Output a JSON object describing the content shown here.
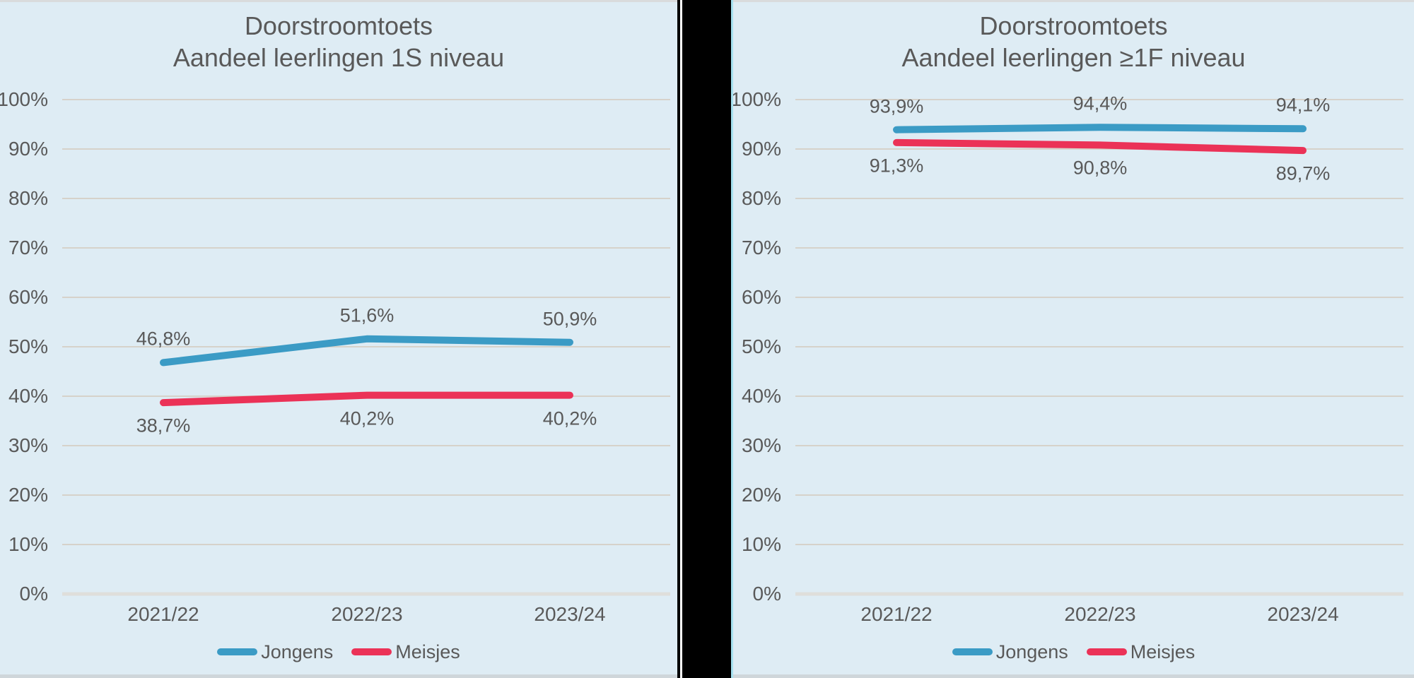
{
  "colors": {
    "background": "#deecf4",
    "divider": "#000000",
    "grid": "#d6d2ca",
    "axis_line": "#dfdedb",
    "text": "#595959",
    "jongens": "#3b9bc5",
    "meisjes": "#eb3257",
    "panel_edge_cyan": "#a7e1ef",
    "panel_edge_white": "#ffffff"
  },
  "chart_data": [
    {
      "type": "line",
      "title": "Doorstroomtoets",
      "subtitle": "Aandeel leerlingen 1S niveau",
      "categories": [
        "2021/22",
        "2022/23",
        "2023/24"
      ],
      "series": [
        {
          "name": "Jongens",
          "color_key": "jongens",
          "values": [
            46.8,
            51.6,
            50.9
          ],
          "labels": [
            "46,8%",
            "51,6%",
            "50,9%"
          ],
          "label_position": "above"
        },
        {
          "name": "Meisjes",
          "color_key": "meisjes",
          "values": [
            38.7,
            40.2,
            40.2
          ],
          "labels": [
            "38,7%",
            "40,2%",
            "40,2%"
          ],
          "label_position": "below"
        }
      ],
      "y_axis": {
        "min": 0,
        "max": 100,
        "step": 10,
        "tick_labels": [
          "100%",
          "90%",
          "80%",
          "70%",
          "60%",
          "50%",
          "40%",
          "30%",
          "20%",
          "10%",
          "0%"
        ]
      },
      "legend": [
        "Jongens",
        "Meisjes"
      ],
      "legend_position": "bottom",
      "grid": true
    },
    {
      "type": "line",
      "title": "Doorstroomtoets",
      "subtitle": "Aandeel leerlingen ≥1F niveau",
      "categories": [
        "2021/22",
        "2022/23",
        "2023/24"
      ],
      "series": [
        {
          "name": "Jongens",
          "color_key": "jongens",
          "values": [
            93.9,
            94.4,
            94.1
          ],
          "labels": [
            "93,9%",
            "94,4%",
            "94,1%"
          ],
          "label_position": "above"
        },
        {
          "name": "Meisjes",
          "color_key": "meisjes",
          "values": [
            91.3,
            90.8,
            89.7
          ],
          "labels": [
            "91,3%",
            "90,8%",
            "89,7%"
          ],
          "label_position": "below"
        }
      ],
      "y_axis": {
        "min": 0,
        "max": 100,
        "step": 10,
        "tick_labels": [
          "100%",
          "90%",
          "80%",
          "70%",
          "60%",
          "50%",
          "40%",
          "30%",
          "20%",
          "10%",
          "0%"
        ]
      },
      "legend": [
        "Jongens",
        "Meisjes"
      ],
      "legend_position": "bottom",
      "grid": true
    }
  ]
}
